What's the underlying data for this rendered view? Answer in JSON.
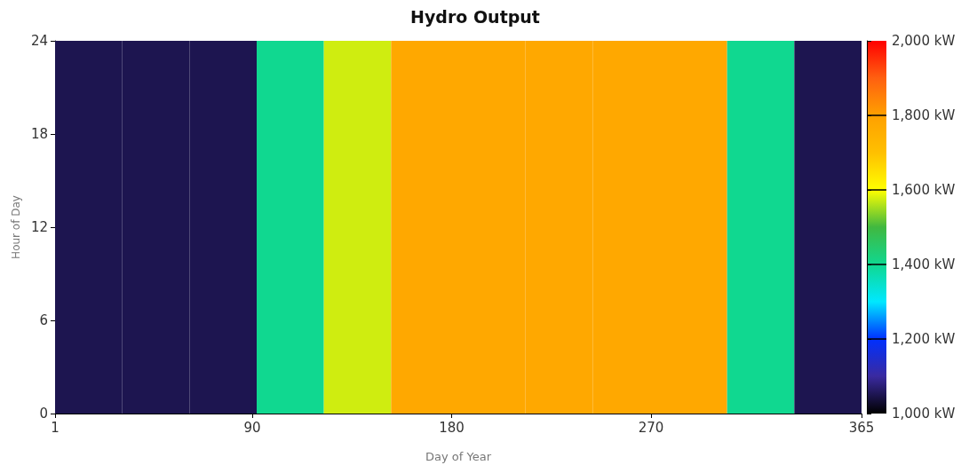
{
  "chart_data": {
    "type": "heatmap",
    "title": "Hydro Output",
    "xlabel": "Day of Year",
    "ylabel": "Hour of Day",
    "cells": [
      [
        1050,
        1050,
        1050,
        1400,
        1575,
        1775,
        1775,
        1775,
        1775,
        1775,
        1400,
        1050
      ]
    ],
    "xlim": [
      1,
      365
    ],
    "xticks": [
      1,
      90,
      180,
      270,
      365
    ],
    "ylim": [
      0,
      24
    ],
    "yticks": [
      0,
      6,
      12,
      18,
      24
    ],
    "clim": [
      1000,
      2000
    ],
    "cticks": [
      {
        "value": 1000,
        "label": "1,000 kW"
      },
      {
        "value": 1200,
        "label": "1,200 kW"
      },
      {
        "value": 1400,
        "label": "1,400 kW"
      },
      {
        "value": 1600,
        "label": "1,600 kW"
      },
      {
        "value": 1800,
        "label": "1,800 kW"
      },
      {
        "value": 2000,
        "label": "2,000 kW"
      }
    ],
    "grid": false
  }
}
